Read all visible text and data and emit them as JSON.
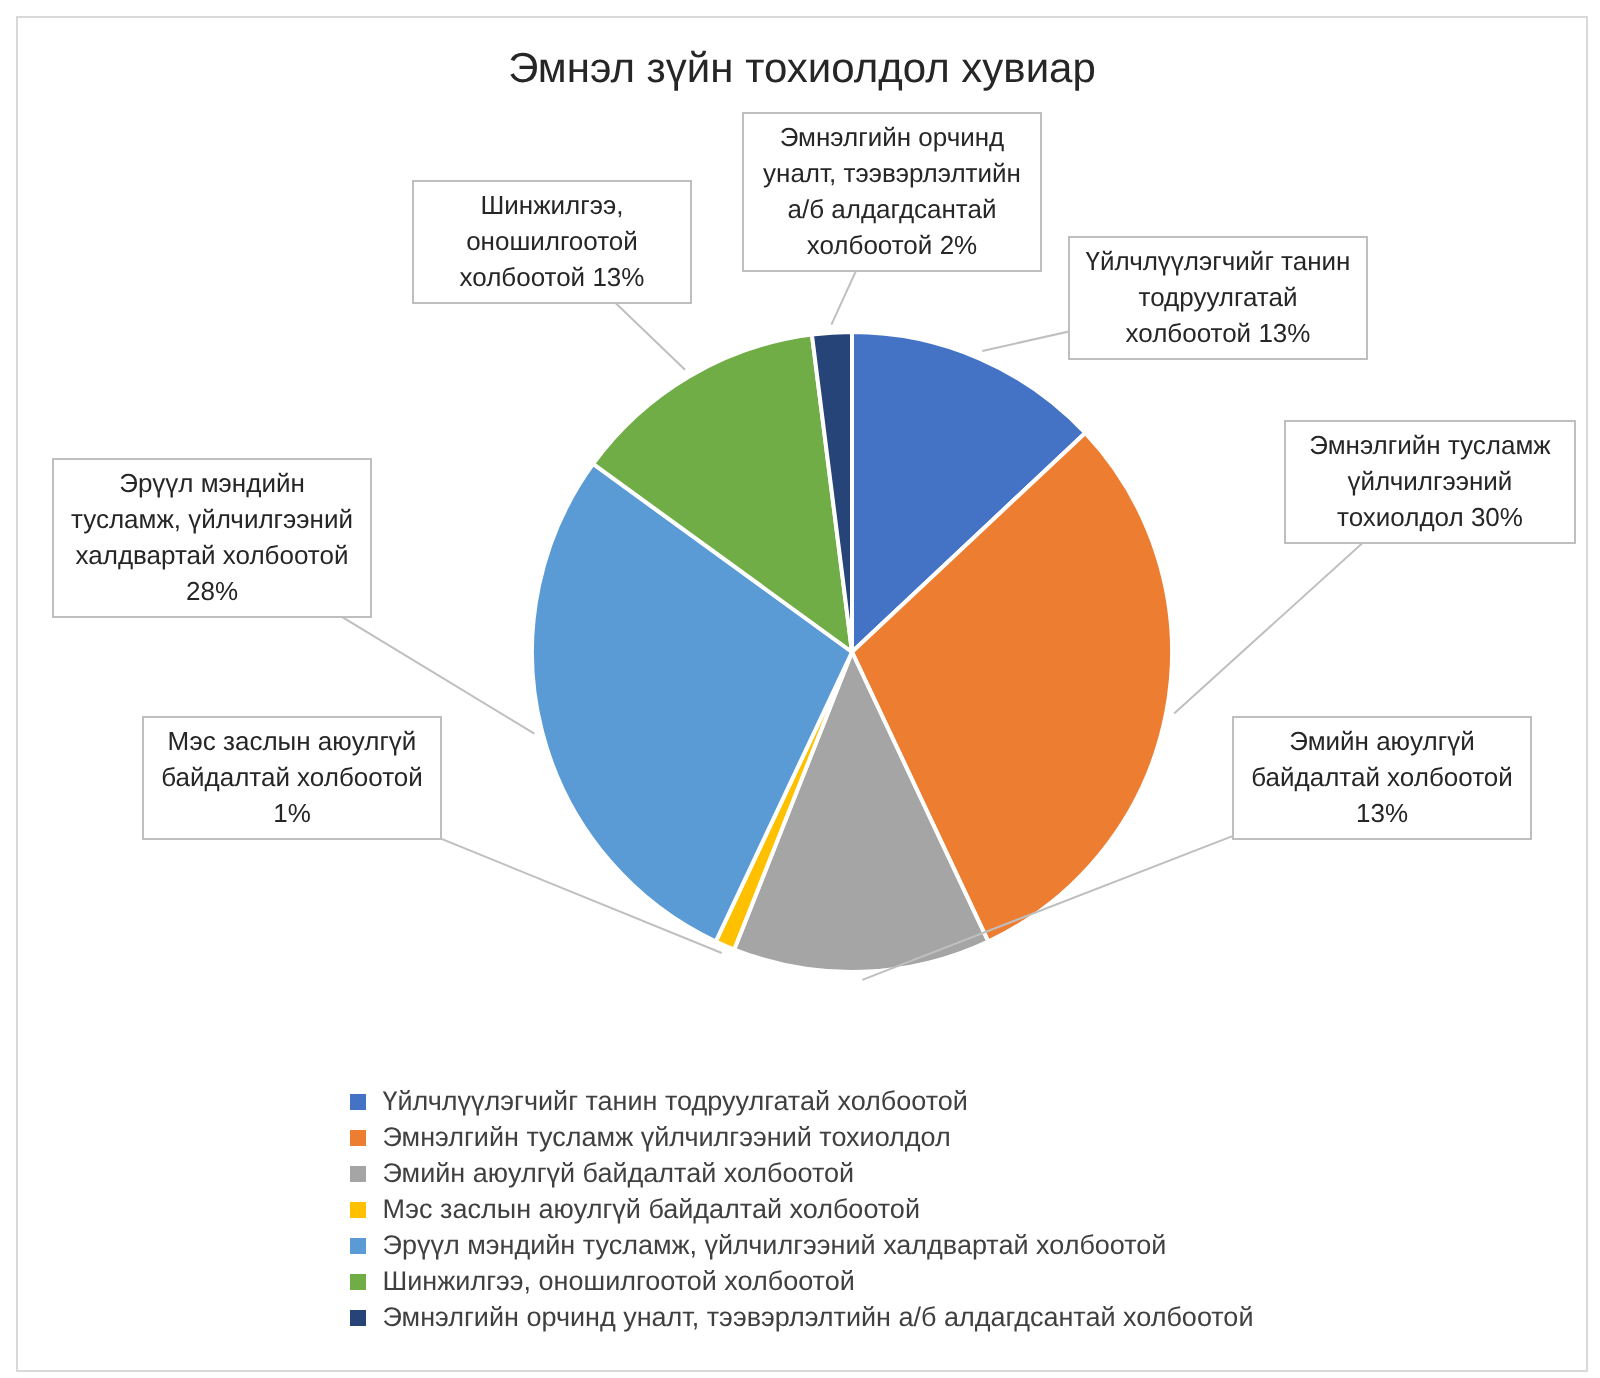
{
  "chart_data": {
    "type": "pie",
    "title": "Эмнэл зүйн тохиолдол хувиар",
    "categories": [
      "Үйлчлүүлэгчийг танин тодруулгатай холбоотой",
      "Эмнэлгийн тусламж үйлчилгээний тохиолдол",
      "Эмийн аюулгүй байдалтай холбоотой",
      "Мэс заслын аюулгүй байдалтай холбоотой",
      "Эрүүл мэндийн тусламж, үйлчилгээний халдвартай холбоотой",
      "Шинжилгээ, оношилгоотой холбоотой",
      "Эмнэлгийн орчинд уналт, тээвэрлэлтийн  а/б алдагдсантай холбоотой"
    ],
    "values": [
      13,
      30,
      13,
      1,
      28,
      13,
      2
    ],
    "value_labels": [
      "13%",
      "30%",
      "13%",
      "1%",
      "28%",
      "13%",
      "2%"
    ],
    "colors": [
      "#4472c4",
      "#ed7d31",
      "#a5a5a5",
      "#ffc000",
      "#5b9bd5",
      "#70ad47",
      "#264478"
    ],
    "legend": "bottom"
  }
}
